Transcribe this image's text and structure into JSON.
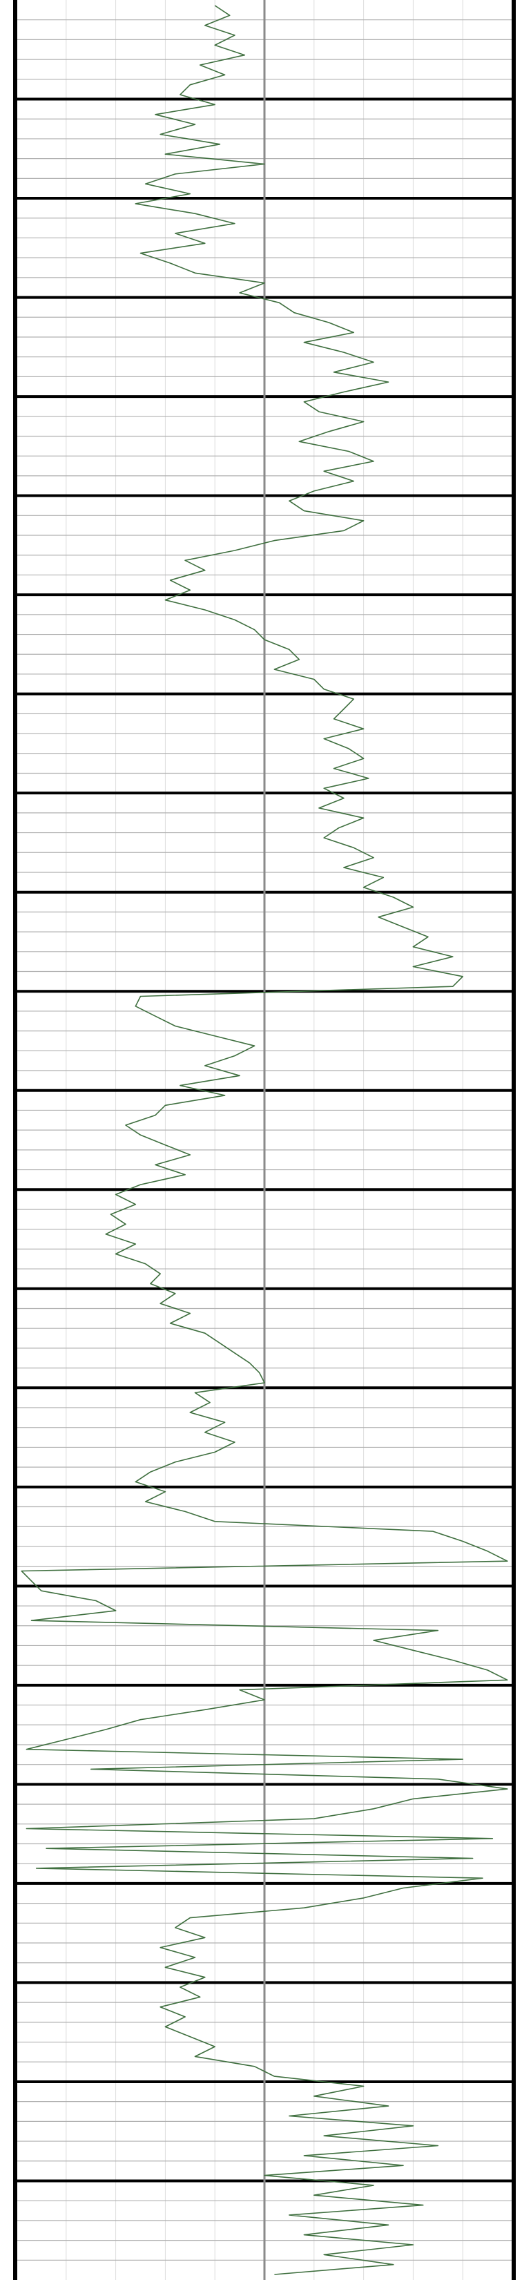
{
  "chart_data": {
    "type": "line",
    "title": "",
    "xlabel": "",
    "ylabel": "",
    "orientation": "vertical-well-log",
    "grid": true,
    "grid_columns": 10,
    "minor_rows_per_block": 5,
    "major_blocks": 23,
    "center_line_fraction": 0.5,
    "colors": {
      "trace": "#3f6f3f",
      "major_line": "#000000",
      "minor_line": "#b0b0b0",
      "vertical_grid": "#dcdcdc",
      "center_line": "#8a8a8a",
      "border": "#000000"
    },
    "series": [
      {
        "points": [
          [
            0.0,
            0.4
          ],
          [
            0.3,
            0.43
          ],
          [
            0.6,
            0.38
          ],
          [
            0.9,
            0.44
          ],
          [
            1.2,
            0.4
          ],
          [
            1.5,
            0.46
          ],
          [
            1.8,
            0.37
          ],
          [
            2.1,
            0.42
          ],
          [
            2.4,
            0.35
          ],
          [
            2.7,
            0.33
          ],
          [
            3.0,
            0.4
          ],
          [
            3.3,
            0.28
          ],
          [
            3.6,
            0.36
          ],
          [
            3.9,
            0.29
          ],
          [
            4.2,
            0.41
          ],
          [
            4.5,
            0.3
          ],
          [
            4.8,
            0.5
          ],
          [
            5.1,
            0.32
          ],
          [
            5.4,
            0.26
          ],
          [
            5.7,
            0.35
          ],
          [
            6.0,
            0.24
          ],
          [
            6.3,
            0.36
          ],
          [
            6.6,
            0.44
          ],
          [
            6.9,
            0.32
          ],
          [
            7.2,
            0.38
          ],
          [
            7.5,
            0.25
          ],
          [
            7.8,
            0.31
          ],
          [
            8.1,
            0.36
          ],
          [
            8.4,
            0.5
          ],
          [
            8.7,
            0.45
          ],
          [
            9.0,
            0.53
          ],
          [
            9.3,
            0.56
          ],
          [
            9.6,
            0.63
          ],
          [
            9.9,
            0.68
          ],
          [
            10.2,
            0.58
          ],
          [
            10.5,
            0.66
          ],
          [
            10.8,
            0.72
          ],
          [
            11.1,
            0.64
          ],
          [
            11.4,
            0.75
          ],
          [
            11.7,
            0.66
          ],
          [
            12.0,
            0.58
          ],
          [
            12.3,
            0.61
          ],
          [
            12.6,
            0.7
          ],
          [
            12.9,
            0.63
          ],
          [
            13.2,
            0.57
          ],
          [
            13.5,
            0.67
          ],
          [
            13.8,
            0.72
          ],
          [
            14.1,
            0.62
          ],
          [
            14.4,
            0.68
          ],
          [
            14.7,
            0.6
          ],
          [
            15.0,
            0.55
          ],
          [
            15.3,
            0.58
          ],
          [
            15.6,
            0.7
          ],
          [
            15.9,
            0.66
          ],
          [
            16.2,
            0.52
          ],
          [
            16.5,
            0.44
          ],
          [
            16.8,
            0.34
          ],
          [
            17.1,
            0.38
          ],
          [
            17.4,
            0.31
          ],
          [
            17.7,
            0.35
          ],
          [
            18.0,
            0.3
          ],
          [
            18.3,
            0.38
          ],
          [
            18.6,
            0.44
          ],
          [
            18.9,
            0.48
          ],
          [
            19.2,
            0.5
          ],
          [
            19.5,
            0.55
          ],
          [
            19.8,
            0.57
          ],
          [
            20.1,
            0.52
          ],
          [
            20.4,
            0.6
          ],
          [
            20.7,
            0.62
          ],
          [
            21.0,
            0.68
          ],
          [
            21.3,
            0.66
          ],
          [
            21.6,
            0.64
          ],
          [
            21.9,
            0.7
          ],
          [
            22.2,
            0.62
          ],
          [
            22.5,
            0.67
          ],
          [
            22.8,
            0.7
          ],
          [
            23.1,
            0.64
          ],
          [
            23.4,
            0.71
          ],
          [
            23.7,
            0.62
          ],
          [
            24.0,
            0.66
          ],
          [
            24.3,
            0.61
          ],
          [
            24.6,
            0.7
          ],
          [
            24.9,
            0.65
          ],
          [
            25.2,
            0.62
          ],
          [
            25.5,
            0.68
          ],
          [
            25.8,
            0.72
          ],
          [
            26.1,
            0.66
          ],
          [
            26.4,
            0.74
          ],
          [
            26.7,
            0.7
          ],
          [
            27.0,
            0.76
          ],
          [
            27.3,
            0.8
          ],
          [
            27.6,
            0.73
          ],
          [
            27.9,
            0.78
          ],
          [
            28.2,
            0.83
          ],
          [
            28.5,
            0.8
          ],
          [
            28.8,
            0.88
          ],
          [
            29.1,
            0.8
          ],
          [
            29.4,
            0.9
          ],
          [
            29.7,
            0.88
          ],
          [
            30.0,
            0.25
          ],
          [
            30.3,
            0.24
          ],
          [
            30.6,
            0.28
          ],
          [
            30.9,
            0.32
          ],
          [
            31.2,
            0.4
          ],
          [
            31.5,
            0.48
          ],
          [
            31.8,
            0.44
          ],
          [
            32.1,
            0.38
          ],
          [
            32.4,
            0.45
          ],
          [
            32.7,
            0.33
          ],
          [
            33.0,
            0.42
          ],
          [
            33.3,
            0.3
          ],
          [
            33.6,
            0.28
          ],
          [
            33.9,
            0.22
          ],
          [
            34.2,
            0.25
          ],
          [
            34.5,
            0.3
          ],
          [
            34.8,
            0.35
          ],
          [
            35.1,
            0.28
          ],
          [
            35.4,
            0.34
          ],
          [
            35.7,
            0.25
          ],
          [
            36.0,
            0.2
          ],
          [
            36.3,
            0.24
          ],
          [
            36.6,
            0.19
          ],
          [
            36.9,
            0.22
          ],
          [
            37.2,
            0.18
          ],
          [
            37.5,
            0.24
          ],
          [
            37.8,
            0.2
          ],
          [
            38.1,
            0.26
          ],
          [
            38.4,
            0.29
          ],
          [
            38.7,
            0.27
          ],
          [
            39.0,
            0.32
          ],
          [
            39.3,
            0.29
          ],
          [
            39.6,
            0.35
          ],
          [
            39.9,
            0.31
          ],
          [
            40.2,
            0.38
          ],
          [
            40.5,
            0.41
          ],
          [
            40.8,
            0.44
          ],
          [
            41.1,
            0.47
          ],
          [
            41.4,
            0.49
          ],
          [
            41.7,
            0.5
          ],
          [
            42.0,
            0.36
          ],
          [
            42.3,
            0.39
          ],
          [
            42.6,
            0.35
          ],
          [
            42.9,
            0.42
          ],
          [
            43.2,
            0.38
          ],
          [
            43.5,
            0.44
          ],
          [
            43.8,
            0.4
          ],
          [
            44.1,
            0.32
          ],
          [
            44.4,
            0.27
          ],
          [
            44.7,
            0.24
          ],
          [
            45.0,
            0.3
          ],
          [
            45.3,
            0.26
          ],
          [
            45.6,
            0.34
          ],
          [
            45.9,
            0.4
          ],
          [
            46.2,
            0.84
          ],
          [
            46.5,
            0.9
          ],
          [
            46.8,
            0.95
          ],
          [
            47.1,
            0.99
          ],
          [
            47.4,
            0.01
          ],
          [
            47.7,
            0.03
          ],
          [
            48.0,
            0.05
          ],
          [
            48.3,
            0.16
          ],
          [
            48.6,
            0.2
          ],
          [
            48.9,
            0.03
          ],
          [
            49.2,
            0.85
          ],
          [
            49.5,
            0.72
          ],
          [
            49.8,
            0.8
          ],
          [
            50.1,
            0.88
          ],
          [
            50.4,
            0.95
          ],
          [
            50.7,
            0.99
          ],
          [
            51.0,
            0.45
          ],
          [
            51.3,
            0.5
          ],
          [
            51.6,
            0.38
          ],
          [
            51.9,
            0.25
          ],
          [
            52.2,
            0.18
          ],
          [
            52.5,
            0.1
          ],
          [
            52.8,
            0.02
          ],
          [
            53.1,
            0.9
          ],
          [
            53.4,
            0.15
          ],
          [
            53.7,
            0.85
          ],
          [
            54.0,
            0.99
          ],
          [
            54.3,
            0.8
          ],
          [
            54.6,
            0.72
          ],
          [
            54.9,
            0.6
          ],
          [
            55.2,
            0.02
          ],
          [
            55.5,
            0.96
          ],
          [
            55.8,
            0.06
          ],
          [
            56.1,
            0.92
          ],
          [
            56.4,
            0.04
          ],
          [
            56.7,
            0.94
          ],
          [
            57.0,
            0.78
          ],
          [
            57.3,
            0.7
          ],
          [
            57.6,
            0.58
          ],
          [
            57.9,
            0.35
          ],
          [
            58.2,
            0.32
          ],
          [
            58.5,
            0.38
          ],
          [
            58.8,
            0.29
          ],
          [
            59.1,
            0.36
          ],
          [
            59.4,
            0.3
          ],
          [
            59.7,
            0.38
          ],
          [
            60.0,
            0.33
          ],
          [
            60.3,
            0.37
          ],
          [
            60.6,
            0.29
          ],
          [
            60.9,
            0.34
          ],
          [
            61.2,
            0.3
          ],
          [
            61.5,
            0.35
          ],
          [
            61.8,
            0.4
          ],
          [
            62.1,
            0.36
          ],
          [
            62.4,
            0.48
          ],
          [
            62.7,
            0.52
          ],
          [
            63.0,
            0.7
          ],
          [
            63.3,
            0.6
          ],
          [
            63.6,
            0.75
          ],
          [
            63.9,
            0.55
          ],
          [
            64.2,
            0.8
          ],
          [
            64.5,
            0.62
          ],
          [
            64.8,
            0.85
          ],
          [
            65.1,
            0.58
          ],
          [
            65.4,
            0.78
          ],
          [
            65.7,
            0.5
          ],
          [
            66.0,
            0.72
          ],
          [
            66.3,
            0.6
          ],
          [
            66.6,
            0.82
          ],
          [
            66.9,
            0.55
          ],
          [
            67.2,
            0.75
          ],
          [
            67.5,
            0.58
          ],
          [
            67.8,
            0.8
          ],
          [
            68.1,
            0.62
          ],
          [
            68.4,
            0.76
          ],
          [
            68.7,
            0.52
          ]
        ]
      }
    ]
  }
}
